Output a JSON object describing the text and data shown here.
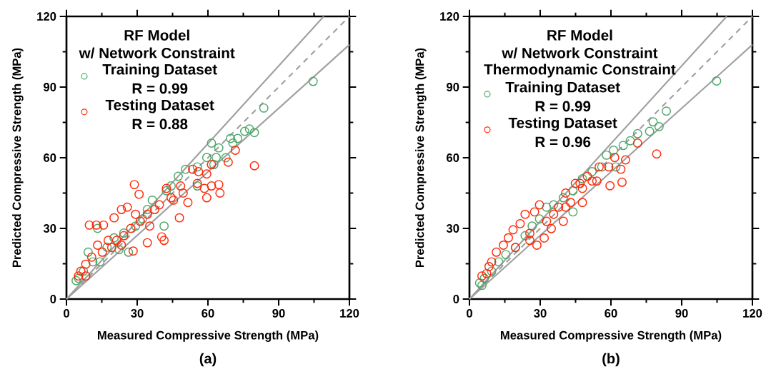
{
  "chart_data": [
    {
      "type": "scatter",
      "title": "RF Model",
      "subtitle": "w/ Network Constraint",
      "xlabel": "Measured Compressive Strength (MPa)",
      "ylabel": "Predicted Compressive Strength (MPa)",
      "annotations": [
        "R = 0.99",
        "R = 0.88",
        "(a)"
      ],
      "xlim": [
        0,
        120
      ],
      "ylim": [
        0,
        120
      ],
      "xticks": [
        0,
        {
          "value": 15,
          "label": null
        },
        30,
        {
          "value": 45,
          "label": null
        },
        60,
        {
          "value": 75,
          "label": null
        },
        90,
        {
          "value": 105,
          "label": null
        },
        120
      ],
      "yticks": [
        0,
        {
          "value": 15,
          "label": null
        },
        30,
        {
          "value": 45,
          "label": null
        },
        60,
        {
          "value": 75,
          "label": null
        },
        90,
        {
          "value": 105,
          "label": null
        },
        120
      ],
      "legend": "top left",
      "grid": false,
      "series": [
        {
          "type": "scatter",
          "name": "Training Dataset",
          "color": "#4ea86c",
          "marker": "circle",
          "x": [
            104.6,
            83.7,
            77.6,
            79.7,
            61.5,
            69.6,
            72.6,
            64.6,
            63.5,
            59.5,
            50.5,
            55.5,
            47.4,
            44.4,
            42.4,
            41.4,
            36.4,
            34.3,
            32.3,
            29.3,
            24.3,
            20.2,
            17.2,
            13.2,
            9.2,
            11.2,
            7.2,
            5.1,
            4.1,
            14.2,
            26.3,
            22.3,
            55.5,
            62.5,
            67.6,
            70.6,
            75.6
          ],
          "values": [
            92.4,
            81.1,
            72.2,
            70.7,
            66.2,
            68.2,
            68.2,
            64.2,
            60.1,
            60.1,
            55.1,
            56.1,
            52.1,
            48.0,
            46.0,
            31.0,
            42.0,
            38.0,
            34.0,
            31.0,
            28.0,
            26.0,
            22.0,
            30.0,
            19.9,
            15.8,
            11.8,
            8.8,
            7.8,
            15.8,
            19.9,
            21.0,
            48.0,
            57.1,
            60.0,
            66.2,
            71.2
          ]
        },
        {
          "type": "scatter",
          "name": "Testing Dataset",
          "color": "#ff2a0a",
          "marker": "circle",
          "x": [
            28.8,
            30.8,
            23.3,
            25.8,
            9.7,
            12.7,
            15.7,
            20.2,
            17.7,
            13.2,
            10.7,
            8.2,
            6.1,
            5.1,
            8.2,
            28.3,
            34.3,
            40.4,
            41.4,
            47.9,
            42.4,
            44.4,
            49.5,
            51.5,
            48.4,
            53.5,
            56.0,
            59.5,
            55.5,
            58.5,
            61.5,
            64.6,
            65.1,
            59.5,
            61.5,
            68.6,
            71.6,
            79.7,
            37.4,
            34.3,
            31.3,
            27.3,
            24.3,
            21.3,
            29.3,
            39.4,
            45.4,
            35.3,
            19.2,
            15.2,
            23.3
          ],
          "values": [
            48.6,
            44.5,
            38.0,
            39.0,
            31.4,
            31.4,
            31.4,
            34.5,
            24.9,
            22.9,
            17.8,
            14.8,
            11.8,
            9.8,
            9.8,
            20.4,
            23.9,
            26.4,
            24.9,
            34.5,
            47.0,
            43.0,
            45.0,
            41.0,
            48.0,
            55.1,
            54.1,
            53.1,
            49.1,
            47.0,
            48.0,
            48.6,
            45.0,
            43.0,
            57.1,
            58.1,
            63.2,
            56.6,
            38.0,
            36.0,
            33.0,
            30.0,
            26.9,
            24.9,
            36.0,
            40.0,
            42.0,
            31.0,
            21.9,
            19.9,
            22.9
          ]
        },
        {
          "type": "line",
          "color": "#a0a0a0",
          "line_style": "solid",
          "marker": "none",
          "x": [
            0,
            109.1
          ],
          "values": [
            0,
            120
          ]
        },
        {
          "type": "line",
          "color": "#a0a0a0",
          "line_style": "dashed",
          "marker": "none",
          "x": [
            0,
            120
          ],
          "values": [
            0,
            120
          ]
        },
        {
          "type": "line",
          "color": "#a0a0a0",
          "line_style": "solid",
          "marker": "none",
          "x": [
            0,
            120
          ],
          "values": [
            0,
            108
          ]
        }
      ]
    },
    {
      "type": "scatter",
      "title": "RF Model",
      "subtitle": "w/ Network Constraint",
      "xlabel": "Measured Compressive Strength (MPa)",
      "ylabel": "Predicted Compressive Strength (MPa)",
      "annotations": [
        "Thermodynamic Constraint",
        "R = 0.99",
        "R = 0.96",
        "(b)"
      ],
      "xlim": [
        0,
        120
      ],
      "ylim": [
        0,
        120
      ],
      "xticks": [
        0,
        {
          "value": 15,
          "label": null
        },
        30,
        {
          "value": 45,
          "label": null
        },
        60,
        {
          "value": 75,
          "label": null
        },
        90,
        {
          "value": 105,
          "label": null
        },
        120
      ],
      "yticks": [
        0,
        {
          "value": 15,
          "label": null
        },
        30,
        {
          "value": 45,
          "label": null
        },
        60,
        {
          "value": 75,
          "label": null
        },
        90,
        {
          "value": 105,
          "label": null
        },
        120
      ],
      "legend": "top left",
      "grid": false,
      "series": [
        {
          "type": "scatter",
          "name": "Training Dataset",
          "color": "#4ea86c",
          "marker": "circle",
          "x": [
            104.8,
            83.5,
            77.9,
            80.4,
            76.4,
            71.3,
            68.2,
            65.2,
            61.1,
            58.1,
            62.1,
            56.1,
            52.0,
            47.9,
            43.9,
            43.9,
            39.8,
            35.7,
            32.7,
            29.7,
            26.6,
            23.6,
            19.5,
            15.4,
            12.4,
            9.4,
            6.3,
            5.3,
            4.3
          ],
          "values": [
            92.6,
            79.8,
            75.2,
            73.2,
            71.2,
            70.2,
            67.2,
            65.2,
            63.2,
            61.1,
            56.1,
            56.1,
            54.1,
            51.1,
            46.0,
            37.0,
            43.0,
            40.0,
            39.0,
            34.0,
            31.0,
            26.9,
            21.9,
            18.9,
            15.8,
            11.8,
            8.8,
            5.8,
            6.8
          ]
        },
        {
          "type": "scatter",
          "name": "Testing Dataset",
          "color": "#ff2a0a",
          "marker": "circle",
          "x": [
            71.3,
            79.4,
            61.6,
            66.2,
            64.2,
            64.7,
            59.6,
            59.1,
            55.0,
            50.0,
            54.0,
            47.9,
            44.9,
            47.9,
            40.8,
            39.8,
            34.7,
            29.7,
            27.6,
            23.6,
            18.5,
            21.5,
            25.6,
            28.6,
            31.7,
            35.7,
            37.8,
            42.9,
            14.4,
            16.5,
            11.4,
            9.4,
            8.3,
            5.3,
            7.3,
            19.5,
            25.6,
            32.7,
            40.8,
            46.9,
            52.0
          ],
          "values": [
            66.2,
            61.6,
            60.1,
            59.1,
            55.1,
            49.6,
            48.1,
            56.1,
            56.1,
            52.1,
            50.1,
            47.0,
            49.1,
            41.0,
            45.0,
            33.0,
            29.9,
            40.0,
            37.0,
            36.0,
            29.4,
            32.0,
            27.9,
            22.9,
            25.9,
            36.0,
            39.0,
            41.0,
            22.9,
            26.0,
            19.9,
            15.8,
            13.8,
            9.8,
            10.8,
            21.9,
            24.9,
            33.0,
            39.0,
            49.1,
            50.1
          ]
        },
        {
          "type": "line",
          "color": "#a0a0a0",
          "line_style": "solid",
          "marker": "none",
          "x": [
            0,
            109.1
          ],
          "values": [
            0,
            120
          ]
        },
        {
          "type": "line",
          "color": "#a0a0a0",
          "line_style": "dashed",
          "marker": "none",
          "x": [
            0,
            120
          ],
          "values": [
            0,
            120
          ]
        },
        {
          "type": "line",
          "color": "#a0a0a0",
          "line_style": "solid",
          "marker": "none",
          "x": [
            0,
            120
          ],
          "values": [
            0,
            108
          ]
        }
      ]
    }
  ]
}
